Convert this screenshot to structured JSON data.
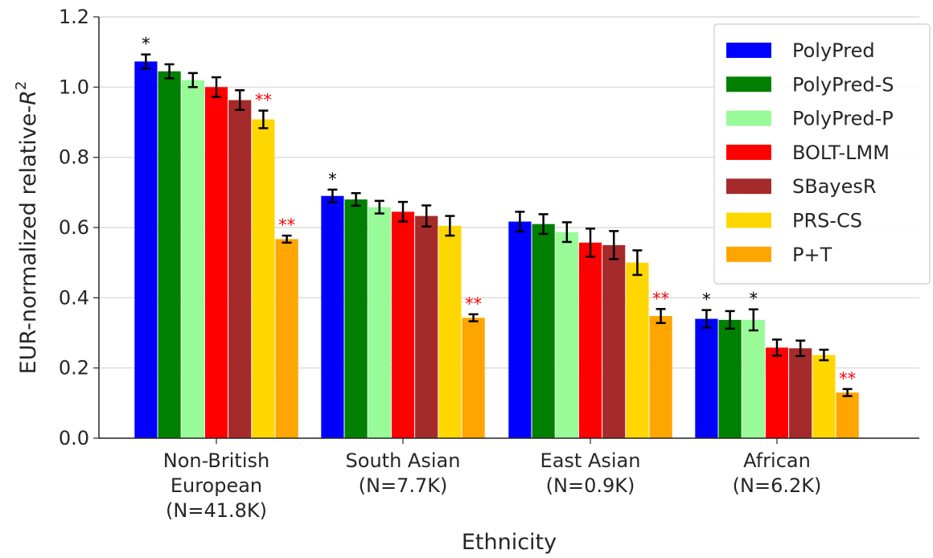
{
  "chart_data": {
    "type": "bar",
    "xlabel": "Ethnicity",
    "ylabel": "EUR-normalized relative-",
    "ylabel_symbol": "R",
    "ylabel_superscript": "2",
    "ylim": [
      0,
      1.2
    ],
    "yticks": [
      "0.0",
      "0.2",
      "0.4",
      "0.6",
      "0.8",
      "1.0",
      "1.2"
    ],
    "grid": true,
    "legend_position": "top-right",
    "categories": [
      [
        "Non-British",
        "European",
        "(N=41.8K)"
      ],
      [
        "South Asian",
        "(N=7.7K)"
      ],
      [
        "East Asian",
        "(N=0.9K)"
      ],
      [
        "African",
        "(N=6.2K)"
      ]
    ],
    "series": [
      {
        "name": "PolyPred",
        "color": "#0000ff",
        "values": [
          1.073,
          0.69,
          0.617,
          0.34
        ],
        "errors": [
          0.02,
          0.018,
          0.028,
          0.025
        ],
        "markers": [
          "*",
          "*",
          "",
          "*"
        ]
      },
      {
        "name": "PolyPred-S",
        "color": "#008000",
        "values": [
          1.045,
          0.68,
          0.61,
          0.337
        ],
        "errors": [
          0.02,
          0.018,
          0.028,
          0.025
        ],
        "markers": [
          "",
          "",
          "",
          ""
        ]
      },
      {
        "name": "PolyPred-P",
        "color": "#98fb98",
        "values": [
          1.02,
          0.658,
          0.587,
          0.337
        ],
        "errors": [
          0.02,
          0.018,
          0.028,
          0.03
        ],
        "markers": [
          "",
          "",
          "",
          "*"
        ]
      },
      {
        "name": "BOLT-LMM",
        "color": "#ff0000",
        "values": [
          1.0,
          0.645,
          0.557,
          0.258
        ],
        "errors": [
          0.028,
          0.028,
          0.04,
          0.023
        ],
        "markers": [
          "",
          "",
          "",
          ""
        ]
      },
      {
        "name": "SBayesR",
        "color": "#a52a2a",
        "values": [
          0.963,
          0.633,
          0.55,
          0.256
        ],
        "errors": [
          0.028,
          0.03,
          0.04,
          0.022
        ],
        "markers": [
          "",
          "",
          "",
          ""
        ]
      },
      {
        "name": "PRS-CS",
        "color": "#ffd700",
        "values": [
          0.908,
          0.605,
          0.5,
          0.237
        ],
        "errors": [
          0.025,
          0.028,
          0.035,
          0.015
        ],
        "markers": [
          "**",
          "",
          "",
          ""
        ]
      },
      {
        "name": "P+T",
        "color": "#ffa500",
        "values": [
          0.567,
          0.343,
          0.348,
          0.13
        ],
        "errors": [
          0.01,
          0.01,
          0.02,
          0.01
        ],
        "markers": [
          "**",
          "**",
          "**",
          "**"
        ]
      }
    ],
    "marker_colors": {
      "*": "#000000",
      "**": "#ff0000"
    }
  }
}
